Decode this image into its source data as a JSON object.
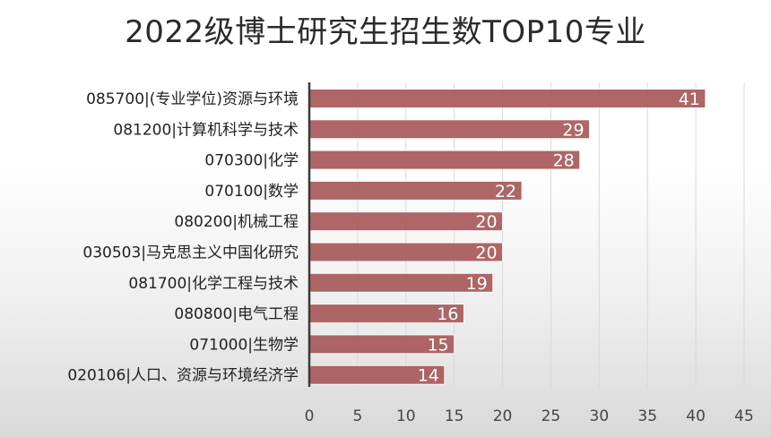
{
  "chart_data": {
    "type": "bar",
    "orientation": "horizontal",
    "title": "2022级博士研究生招生数TOP10专业",
    "categories": [
      "085700|(专业学位)资源与环境",
      "081200|计算机科学与技术",
      "070300|化学",
      "070100|数学",
      "080200|机械工程",
      "030503|马克思主义中国化研究",
      "081700|化学工程与技术",
      "080800|电气工程",
      "071000|生物学",
      "020106|人口、资源与环境经济学"
    ],
    "values": [
      41,
      29,
      28,
      22,
      20,
      20,
      19,
      16,
      15,
      14
    ],
    "xlim": [
      0,
      45
    ],
    "xticks": [
      0,
      5,
      10,
      15,
      20,
      25,
      30,
      35,
      40,
      45
    ],
    "xlabel": "",
    "ylabel": "",
    "grid": true,
    "bar_color": "#a85a5a"
  }
}
